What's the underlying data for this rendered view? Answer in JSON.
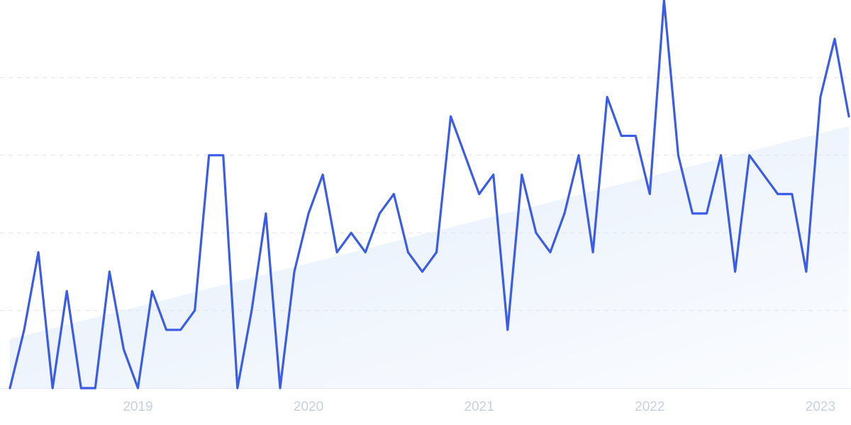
{
  "chart_data": {
    "type": "line",
    "categories": [
      null,
      null,
      null,
      null,
      null,
      null,
      null,
      null,
      null,
      "2019",
      null,
      null,
      null,
      null,
      null,
      null,
      null,
      null,
      null,
      null,
      null,
      "2020",
      null,
      null,
      null,
      null,
      null,
      null,
      null,
      null,
      null,
      null,
      null,
      "2021",
      null,
      null,
      null,
      null,
      null,
      null,
      null,
      null,
      null,
      null,
      null,
      "2022",
      null,
      null,
      null,
      null,
      null,
      null,
      null,
      null,
      null,
      null,
      null,
      "2023",
      null,
      null
    ],
    "values": [
      0,
      15,
      35,
      0,
      25,
      0,
      0,
      30,
      10,
      0,
      25,
      15,
      15,
      20,
      60,
      60,
      0,
      20,
      45,
      0,
      30,
      45,
      55,
      35,
      40,
      35,
      45,
      50,
      35,
      30,
      35,
      70,
      60,
      50,
      55,
      15,
      55,
      40,
      35,
      45,
      60,
      35,
      75,
      65,
      65,
      50,
      100,
      60,
      45,
      45,
      60,
      30,
      60,
      55,
      50,
      50,
      30,
      75,
      90,
      70
    ],
    "color": "#3a5ce6",
    "trend": [
      12.6,
      67.5
    ],
    "trend_color": "#e3edfb",
    "ylim": [
      0,
      100
    ],
    "gridlines": [
      20,
      40,
      60,
      80
    ],
    "grid": true
  }
}
